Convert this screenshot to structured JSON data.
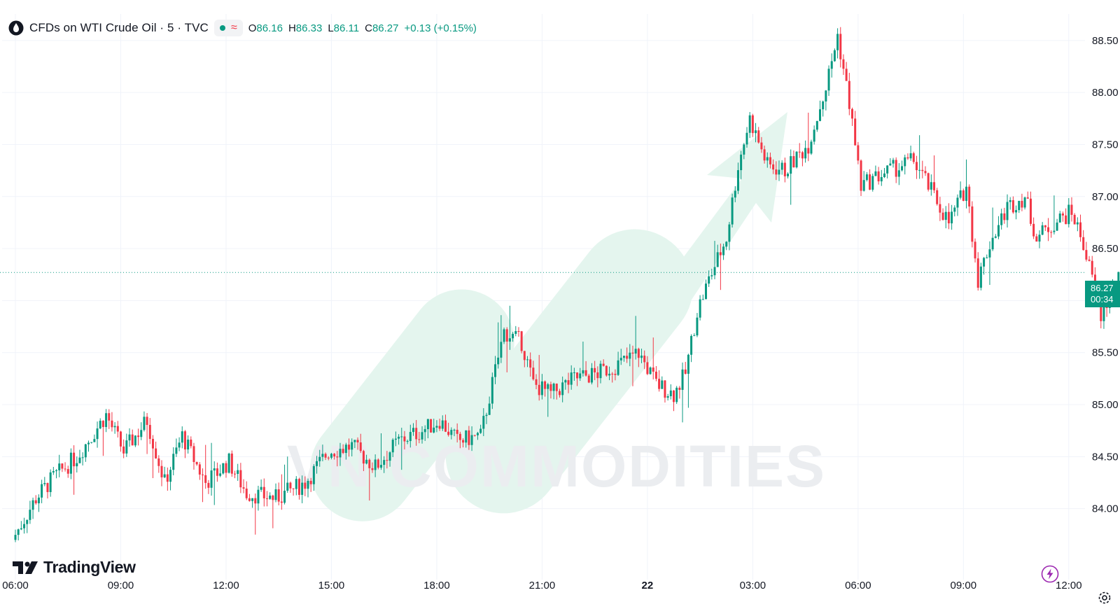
{
  "header": {
    "symbol_title": "CFDs on WTI Crude Oil · 5 · TVC",
    "open_label": "O",
    "open": "86.16",
    "high_label": "H",
    "high": "86.33",
    "low_label": "L",
    "low": "86.11",
    "close_label": "C",
    "close": "86.27",
    "change": "+0.13 (+0.15%)",
    "status_dot_color": "#089981",
    "wave_icon_color": "#f23645"
  },
  "price_tag": {
    "price": "86.27",
    "countdown": "00:34",
    "color": "#089981"
  },
  "branding": {
    "logo_text": "TradingView",
    "watermark_text": "VN COMMODITIES"
  },
  "colors": {
    "up": "#089981",
    "down": "#f23645",
    "grid": "#f0f3fa",
    "watermark": "#e1f4ec"
  },
  "chart_data": {
    "type": "candlestick",
    "symbol": "CFDs on WTI Crude Oil",
    "interval": "5",
    "y_range": [
      83.5,
      88.6
    ],
    "y_ticks": [
      84.0,
      84.5,
      85.0,
      85.5,
      86.0,
      86.5,
      87.0,
      87.5,
      88.0,
      88.5
    ],
    "y_tick_labels": [
      "84.00",
      "84.50",
      "85.00",
      "85.50",
      "86.00",
      "86.50",
      "87.00",
      "87.50",
      "88.00",
      "88.50"
    ],
    "x_ticks": [
      {
        "label": "06:00",
        "t": 0
      },
      {
        "label": "09:00",
        "t": 36
      },
      {
        "label": "12:00",
        "t": 72
      },
      {
        "label": "15:00",
        "t": 108
      },
      {
        "label": "18:00",
        "t": 144
      },
      {
        "label": "21:00",
        "t": 180
      },
      {
        "label": "22",
        "t": 216,
        "bold": true
      },
      {
        "label": "03:00",
        "t": 252
      },
      {
        "label": "06:00",
        "t": 288
      },
      {
        "label": "09:00",
        "t": 324
      },
      {
        "label": "12:00",
        "t": 360
      }
    ],
    "bar_count": 350,
    "last_price": 86.27,
    "anchors": [
      [
        0,
        83.7
      ],
      [
        8,
        84.1
      ],
      [
        14,
        84.3
      ],
      [
        22,
        84.5
      ],
      [
        32,
        84.9
      ],
      [
        38,
        84.55
      ],
      [
        46,
        84.85
      ],
      [
        52,
        84.25
      ],
      [
        58,
        84.7
      ],
      [
        66,
        84.25
      ],
      [
        74,
        84.45
      ],
      [
        80,
        84.15
      ],
      [
        90,
        84.1
      ],
      [
        100,
        84.25
      ],
      [
        108,
        84.55
      ],
      [
        116,
        84.6
      ],
      [
        124,
        84.4
      ],
      [
        132,
        84.65
      ],
      [
        140,
        84.75
      ],
      [
        146,
        84.85
      ],
      [
        152,
        84.65
      ],
      [
        160,
        84.7
      ],
      [
        164,
        85.2
      ],
      [
        168,
        85.7
      ],
      [
        174,
        85.6
      ],
      [
        178,
        85.2
      ],
      [
        184,
        85.1
      ],
      [
        192,
        85.25
      ],
      [
        200,
        85.3
      ],
      [
        208,
        85.4
      ],
      [
        214,
        85.5
      ],
      [
        220,
        85.2
      ],
      [
        226,
        85.1
      ],
      [
        230,
        85.3
      ],
      [
        234,
        85.9
      ],
      [
        238,
        86.2
      ],
      [
        244,
        86.6
      ],
      [
        248,
        87.3
      ],
      [
        252,
        87.75
      ],
      [
        258,
        87.3
      ],
      [
        264,
        87.25
      ],
      [
        272,
        87.5
      ],
      [
        278,
        88.05
      ],
      [
        282,
        88.55
      ],
      [
        286,
        87.9
      ],
      [
        290,
        87.1
      ],
      [
        296,
        87.2
      ],
      [
        304,
        87.3
      ],
      [
        308,
        87.35
      ],
      [
        314,
        87.05
      ],
      [
        320,
        86.75
      ],
      [
        326,
        87.1
      ],
      [
        330,
        86.2
      ],
      [
        334,
        86.55
      ],
      [
        340,
        86.9
      ],
      [
        346,
        87.0
      ],
      [
        350,
        86.6
      ],
      [
        356,
        86.75
      ],
      [
        362,
        86.85
      ],
      [
        366,
        86.55
      ],
      [
        372,
        85.85
      ],
      [
        376,
        86.1
      ],
      [
        384,
        86.45
      ],
      [
        388,
        86.25
      ]
    ]
  }
}
